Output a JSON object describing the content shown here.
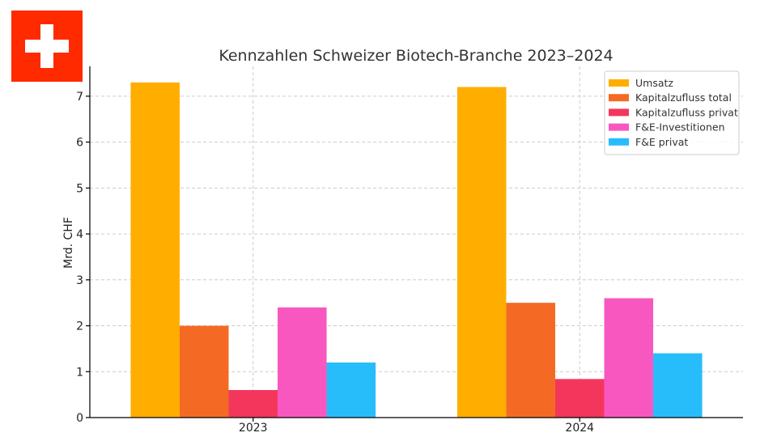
{
  "flag": {
    "name": "swiss-flag",
    "red": "#FF2A00",
    "cross": "#FFFFFF"
  },
  "chart_data": {
    "type": "bar",
    "title": "Kennzahlen Schweizer Biotech-Branche 2023–2024",
    "xlabel": "",
    "ylabel": "Mrd. CHF",
    "categories": [
      "2023",
      "2024"
    ],
    "ylim": [
      0,
      7.65
    ],
    "yticks": [
      "0",
      "1",
      "2",
      "3",
      "4",
      "5",
      "6",
      "7"
    ],
    "grid": true,
    "legend_position": "top-right",
    "series": [
      {
        "name": "Umsatz",
        "color": "#FFAE00",
        "values": [
          7.3,
          7.2
        ]
      },
      {
        "name": "Kapitalzufluss total",
        "color": "#F46A25",
        "values": [
          2.0,
          2.5
        ]
      },
      {
        "name": "Kapitalzufluss privat",
        "color": "#F5365C",
        "values": [
          0.6,
          0.84
        ]
      },
      {
        "name": "F&E-Investitionen",
        "color": "#F857C0",
        "values": [
          2.4,
          2.6
        ]
      },
      {
        "name": "F&E privat",
        "color": "#27BDFB",
        "values": [
          1.2,
          1.4
        ]
      }
    ]
  }
}
